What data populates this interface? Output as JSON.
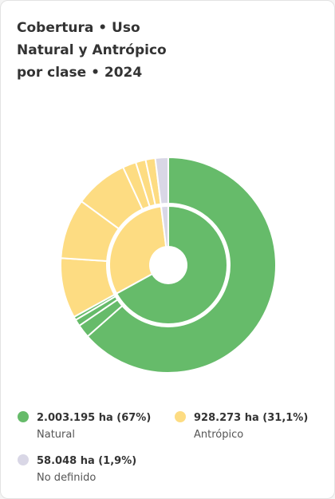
{
  "chart_data": {
    "type": "sunburst",
    "title": "Cobertura • Uso\nNatural y Antrópico\npor clase • 2024",
    "categories": [
      "Natural",
      "Antrópico",
      "No definido"
    ],
    "values": [
      2003195,
      928273,
      58048
    ],
    "value_labels": [
      "2.003.195 ha (67%)",
      "928.273 ha (31,1%)",
      "58.048 ha (1,9%)"
    ],
    "colors": [
      "#66bb6a",
      "#fddc82",
      "#d9d7e6"
    ],
    "subvalues": [
      [
        1898000,
        60000,
        30000,
        15195
      ],
      [
        270000,
        270000,
        240000,
        60000,
        45000,
        43273
      ],
      [
        58048
      ]
    ]
  }
}
